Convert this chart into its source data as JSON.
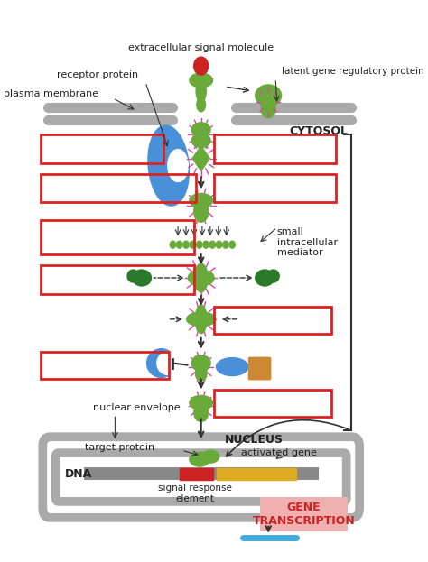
{
  "bg_color": "#ffffff",
  "fig_width": 4.74,
  "fig_height": 6.23,
  "labels": {
    "extracellular_signal_molecule": "extracellular signal molecule",
    "receptor_protein": "receptor protein",
    "plasma_membrane": "plasma membrane",
    "latent_gene_regulatory": "latent gene regulatory protein",
    "cytosol": "CYTOSOL",
    "small_intracellular": "small\nintracellular\nmediator",
    "nuclear_envelope": "nuclear envelope",
    "nucleus": "NUCLEUS",
    "target_protein": "target protein",
    "dna": "DNA",
    "signal_response_element": "signal response\nelement",
    "activated_gene": "activated gene",
    "gene_transcription": "GENE\nTRANSCRIPTION"
  },
  "colors": {
    "green_protein": "#6aaa3a",
    "blue_protein": "#4a90d9",
    "red_dot": "#cc2222",
    "dark_green": "#2a7a2a",
    "membrane_gray": "#aaaaaa",
    "box_red": "#dd2222",
    "dna_gray": "#888888",
    "dna_red": "#cc2222",
    "dna_yellow": "#ddaa22",
    "blue_rna": "#44aadd",
    "gene_transcription_bg": "#f0b0b0",
    "pink_spikes": "#dd44aa",
    "orange_cylinder": "#cc8833"
  }
}
